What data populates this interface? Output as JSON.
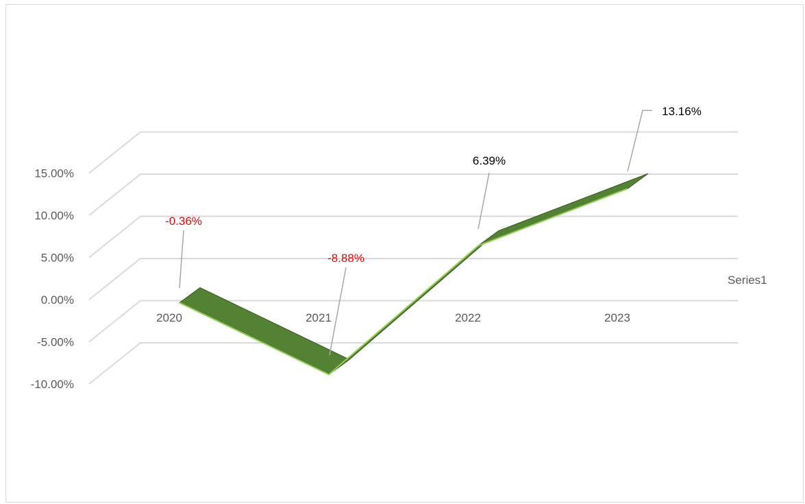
{
  "chart_data": {
    "type": "line",
    "style": "3d-line",
    "categories": [
      "2020",
      "2021",
      "2022",
      "2023"
    ],
    "series": [
      {
        "name": "Series1",
        "values": [
          -0.36,
          -8.88,
          6.39,
          13.16
        ],
        "color": "#548235"
      }
    ],
    "data_labels": [
      "-0.36%",
      "-8.88%",
      "6.39%",
      "13.16%"
    ],
    "y_ticks": [
      "15.00%",
      "10.00%",
      "5.00%",
      "0.00%",
      "-5.00%",
      "-10.00%"
    ],
    "ylim": [
      -10,
      15
    ],
    "y_unit": "%",
    "legend": "right",
    "grid": true,
    "colors": {
      "gridline": "#d9d9d9",
      "negative_label": "#ff0000",
      "positive_label": "#000000",
      "leader_line": "#a6a6a6",
      "axis_text": "#595959"
    }
  }
}
